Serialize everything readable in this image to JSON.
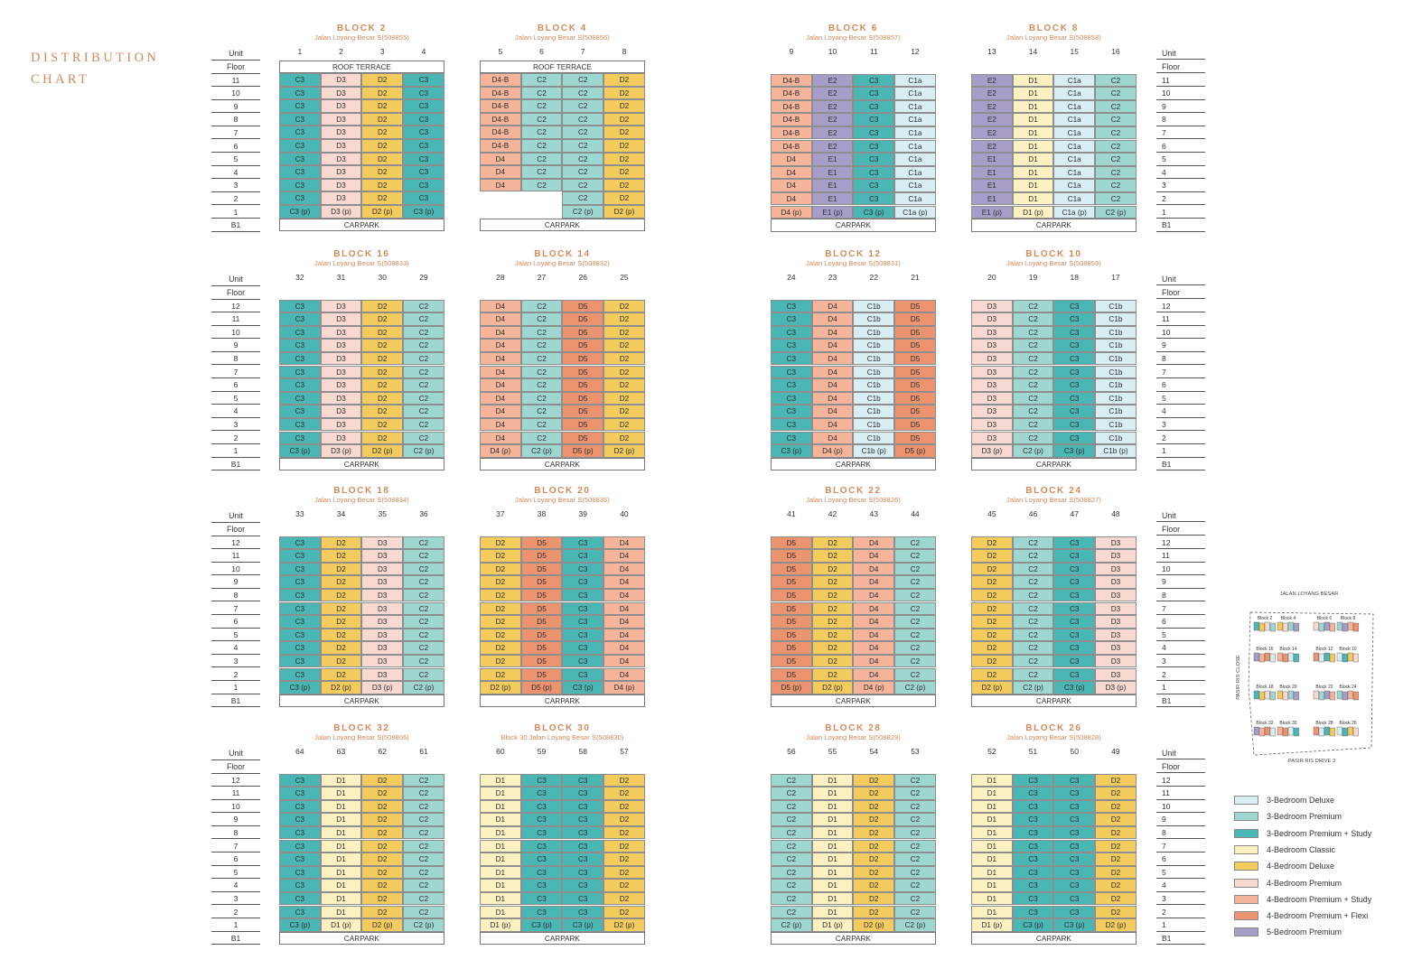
{
  "page": {
    "title_lines": [
      "DISTRIBUTION",
      "CHART"
    ]
  },
  "labels": {
    "unit": "Unit",
    "floor": "Floor",
    "roof": "ROOF TERRACE",
    "carpark": "CARPARK",
    "basement": "B1"
  },
  "colors": {
    "C1a": "#d9eef2",
    "C1b": "#d9eef2",
    "C2": "#9ed7d0",
    "C3": "#4bb7b5",
    "D1": "#fdf1c2",
    "D2": "#f4cc5e",
    "D3": "#f8d9d2",
    "D4": "#f6b59a",
    "D4-B": "#f6b59a",
    "D5": "#ec9370",
    "E1": "#a69ec9",
    "E2": "#a69ec9"
  },
  "legend": [
    {
      "label": "3-Bedroom Deluxe",
      "color": "#d9eef2"
    },
    {
      "label": "3-Bedroom Premium",
      "color": "#9ed7d0"
    },
    {
      "label": "3-Bedroom Premium + Study",
      "color": "#4bb7b5"
    },
    {
      "label": "4-Bedroom Classic",
      "color": "#fdf1c2"
    },
    {
      "label": "4-Bedroom Deluxe",
      "color": "#f4cc5e"
    },
    {
      "label": "4-Bedroom Premium",
      "color": "#f8d9d2"
    },
    {
      "label": "4-Bedroom Premium + Study",
      "color": "#f6b59a"
    },
    {
      "label": "4-Bedroom Premium + Flexi",
      "color": "#ec9370"
    },
    {
      "label": "5-Bedroom Premium",
      "color": "#a69ec9"
    }
  ],
  "keyplan": {
    "road_top": "JALAN LOYANG BESAR",
    "road_left": "PASIR RIS CLOSE",
    "road_bottom": "PASIR RIS DRIVE 3",
    "labels": [
      "Block 2",
      "Block 4",
      "Block 6",
      "Block 8",
      "Block 16",
      "Block 14",
      "Block 12",
      "Block 10",
      "Block 18",
      "Block 20",
      "Block 22",
      "Block 24",
      "Block 32",
      "Block 30",
      "Block 28",
      "Block 26"
    ]
  },
  "blocks": [
    {
      "name": "BLOCK 2",
      "address": "Jalan Loyang Besar S(508855)",
      "units": [
        "1",
        "2",
        "3",
        "4"
      ],
      "roof": true,
      "top": [
        "C3",
        "D3",
        "D2",
        "C3"
      ],
      "count": 10,
      "ground": [
        "C3 (p)",
        "D3 (p)",
        "D2 (p)",
        "C3 (p)"
      ]
    },
    {
      "name": "BLOCK 4",
      "address": "Jalan Loyang Besar S(508856)",
      "units": [
        "5",
        "6",
        "7",
        "8"
      ],
      "roof": true,
      "cols": [
        {
          "values": [
            "D4-B",
            "D4-B",
            "D4-B",
            "D4-B",
            "D4-B",
            "D4-B",
            "D4",
            "D4",
            "D4"
          ]
        },
        {
          "values": [
            "C2",
            "C2",
            "C2",
            "C2",
            "C2",
            "C2",
            "C2",
            "C2",
            "C2"
          ]
        },
        {
          "values": [
            "C2",
            "C2",
            "C2",
            "C2",
            "C2",
            "C2",
            "C2",
            "C2",
            "C2",
            "C2",
            "C2 (p)"
          ]
        },
        {
          "values": [
            "D2",
            "D2",
            "D2",
            "D2",
            "D2",
            "D2",
            "D2",
            "D2",
            "D2",
            "D2",
            "D2 (p)"
          ]
        }
      ]
    },
    {
      "name": "BLOCK 6",
      "address": "Jalan Loyang Besar S(508857)",
      "units": [
        "9",
        "10",
        "11",
        "12"
      ],
      "cols": [
        {
          "values": [
            "D4-B",
            "D4-B",
            "D4-B",
            "D4-B",
            "D4-B",
            "D4-B",
            "D4",
            "D4",
            "D4",
            "D4",
            "D4 (p)"
          ]
        },
        {
          "values": [
            "E2",
            "E2",
            "E2",
            "E2",
            "E2",
            "E2",
            "E1",
            "E1",
            "E1",
            "E1",
            "E1 (p)"
          ]
        },
        {
          "values": [
            "C3",
            "C3",
            "C3",
            "C3",
            "C3",
            "C3",
            "C3",
            "C3",
            "C3",
            "C3",
            "C3 (p)"
          ]
        },
        {
          "values": [
            "C1a",
            "C1a",
            "C1a",
            "C1a",
            "C1a",
            "C1a",
            "C1a",
            "C1a",
            "C1a",
            "C1a",
            "C1a (p)"
          ]
        }
      ]
    },
    {
      "name": "BLOCK 8",
      "address": "Jalan Loyang Besar S(508858)",
      "units": [
        "13",
        "14",
        "15",
        "16"
      ],
      "cols": [
        {
          "values": [
            "E2",
            "E2",
            "E2",
            "E2",
            "E2",
            "E2",
            "E1",
            "E1",
            "E1",
            "E1",
            "E1 (p)"
          ]
        },
        {
          "values": [
            "D1",
            "D1",
            "D1",
            "D1",
            "D1",
            "D1",
            "D1",
            "D1",
            "D1",
            "D1",
            "D1 (p)"
          ]
        },
        {
          "values": [
            "C1a",
            "C1a",
            "C1a",
            "C1a",
            "C1a",
            "C1a",
            "C1a",
            "C1a",
            "C1a",
            "C1a",
            "C1a (p)"
          ]
        },
        {
          "values": [
            "C2",
            "C2",
            "C2",
            "C2",
            "C2",
            "C2",
            "C2",
            "C2",
            "C2",
            "C2",
            "C2 (p)"
          ]
        }
      ]
    },
    {
      "name": "BLOCK 16",
      "address": "Jalan Loyang Besar S(508833)",
      "units": [
        "32",
        "31",
        "30",
        "29"
      ],
      "top": [
        "C3",
        "D3",
        "D2",
        "C2"
      ],
      "count": 11,
      "ground": [
        "C3 (p)",
        "D3 (p)",
        "D2 (p)",
        "C2 (p)"
      ]
    },
    {
      "name": "BLOCK 14",
      "address": "Jalan Loyang Besar S(508832)",
      "units": [
        "28",
        "27",
        "26",
        "25"
      ],
      "top": [
        "D4",
        "C2",
        "D5",
        "D2"
      ],
      "count": 11,
      "ground": [
        "D4 (p)",
        "C2 (p)",
        "D5 (p)",
        "D2 (p)"
      ]
    },
    {
      "name": "BLOCK 12",
      "address": "Jalan Loyang Besar S(508831)",
      "units": [
        "24",
        "23",
        "22",
        "21"
      ],
      "top": [
        "C3",
        "D4",
        "C1b",
        "D5"
      ],
      "count": 11,
      "ground": [
        "C3 (p)",
        "D4 (p)",
        "C1b (p)",
        "D5 (p)"
      ]
    },
    {
      "name": "BLOCK 10",
      "address": "Jalan Loyang Besar S(508859)",
      "units": [
        "20",
        "19",
        "18",
        "17"
      ],
      "top": [
        "D3",
        "C2",
        "C3",
        "C1b"
      ],
      "count": 11,
      "ground": [
        "D3 (p)",
        "C2 (p)",
        "C3 (p)",
        "C1b (p)"
      ]
    },
    {
      "name": "BLOCK 18",
      "address": "Jalan Loyang Besar S(508834)",
      "units": [
        "33",
        "34",
        "35",
        "36"
      ],
      "top": [
        "C3",
        "D2",
        "D3",
        "C2"
      ],
      "count": 11,
      "ground": [
        "C3 (p)",
        "D2 (p)",
        "D3 (p)",
        "C2 (p)"
      ]
    },
    {
      "name": "BLOCK 20",
      "address": "Jalan Loyang Besar S(508835)",
      "units": [
        "37",
        "38",
        "39",
        "40"
      ],
      "top": [
        "D2",
        "D5",
        "C3",
        "D4"
      ],
      "count": 11,
      "ground": [
        "D2 (p)",
        "D5 (p)",
        "C3 (p)",
        "D4 (p)"
      ]
    },
    {
      "name": "BLOCK 22",
      "address": "Jalan Loyang Besar S(508826)",
      "units": [
        "41",
        "42",
        "43",
        "44"
      ],
      "top": [
        "D5",
        "D2",
        "D4",
        "C2"
      ],
      "count": 11,
      "ground": [
        "D5 (p)",
        "D2 (p)",
        "D4 (p)",
        "C2 (p)"
      ]
    },
    {
      "name": "BLOCK 24",
      "address": "Jalan Loyang Besar S(508827)",
      "units": [
        "45",
        "46",
        "47",
        "48"
      ],
      "top": [
        "D2",
        "C2",
        "C3",
        "D3"
      ],
      "count": 11,
      "ground": [
        "D2 (p)",
        "C2 (p)",
        "C3 (p)",
        "D3 (p)"
      ]
    },
    {
      "name": "BLOCK 32",
      "address": "Jalan Loyang Besar S(508806)",
      "units": [
        "64",
        "63",
        "62",
        "61"
      ],
      "top": [
        "C3",
        "D1",
        "D2",
        "C2"
      ],
      "count": 11,
      "ground": [
        "C3 (p)",
        "D1 (p)",
        "D2 (p)",
        "C2 (p)"
      ]
    },
    {
      "name": "BLOCK 30",
      "address": "Block 30 Jalan Loyang Besar S(508830)",
      "units": [
        "60",
        "59",
        "58",
        "57"
      ],
      "top": [
        "D1",
        "C3",
        "C3",
        "D2"
      ],
      "count": 11,
      "ground": [
        "D1 (p)",
        "C3 (p)",
        "C3 (p)",
        "D2 (p)"
      ]
    },
    {
      "name": "BLOCK 28",
      "address": "Jalan Loyang Besar S(508829)",
      "units": [
        "56",
        "55",
        "54",
        "53"
      ],
      "top": [
        "C2",
        "D1",
        "D2",
        "C2"
      ],
      "count": 11,
      "ground": [
        "C2 (p)",
        "D1 (p)",
        "D2 (p)",
        "C2 (p)"
      ]
    },
    {
      "name": "BLOCK 26",
      "address": "Jalan Loyang Besar S(508828)",
      "units": [
        "52",
        "51",
        "50",
        "49"
      ],
      "top": [
        "D1",
        "C3",
        "C3",
        "D2"
      ],
      "count": 11,
      "ground": [
        "D1 (p)",
        "C3 (p)",
        "C3 (p)",
        "D2 (p)"
      ]
    }
  ],
  "axes": [
    {
      "floors": [
        "11",
        "10",
        "9",
        "8",
        "7",
        "6",
        "5",
        "4",
        "3",
        "2",
        "1",
        "B1"
      ]
    },
    {
      "floors": [
        "12",
        "11",
        "10",
        "9",
        "8",
        "7",
        "6",
        "5",
        "4",
        "3",
        "2",
        "1",
        "B1"
      ]
    },
    {
      "floors": [
        "12",
        "11",
        "10",
        "9",
        "8",
        "7",
        "6",
        "5",
        "4",
        "3",
        "2",
        "1",
        "B1"
      ]
    },
    {
      "floors": [
        "12",
        "11",
        "10",
        "9",
        "8",
        "7",
        "6",
        "5",
        "4",
        "3",
        "2",
        "1",
        "B1"
      ]
    }
  ]
}
